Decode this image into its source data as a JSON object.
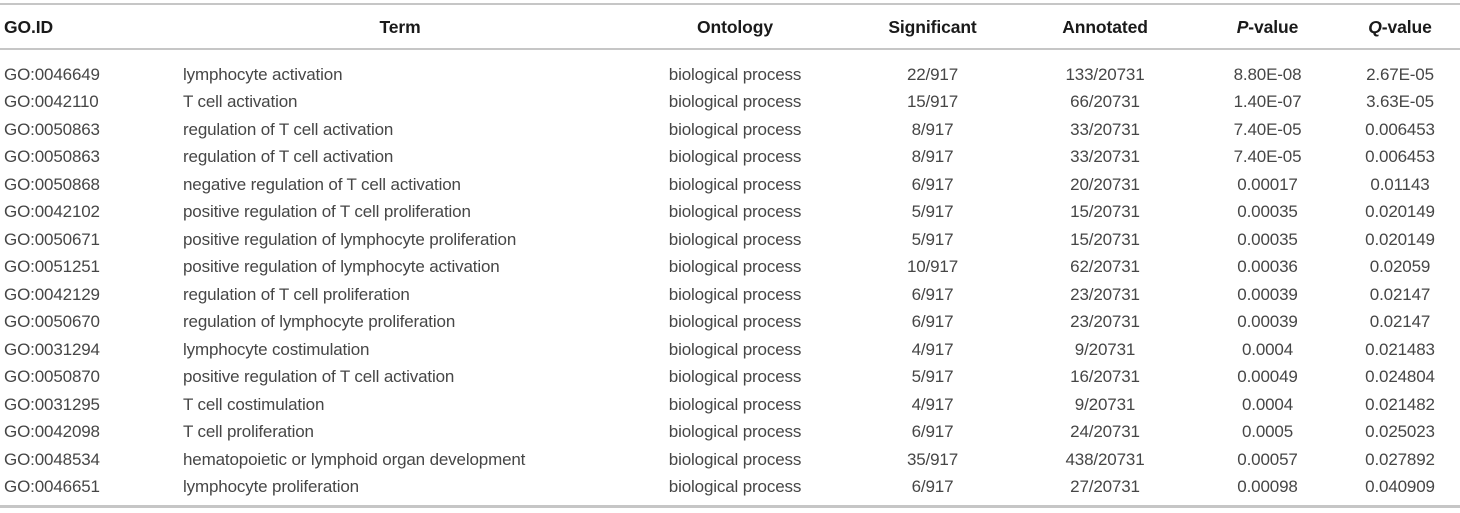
{
  "table": {
    "columns": [
      {
        "key": "go_id",
        "label": "GO.ID",
        "italic_first": false
      },
      {
        "key": "term",
        "label": "Term",
        "italic_first": false
      },
      {
        "key": "ontology",
        "label": "Ontology",
        "italic_first": false
      },
      {
        "key": "significant",
        "label": "Significant",
        "italic_first": false
      },
      {
        "key": "annotated",
        "label": "Annotated",
        "italic_first": false
      },
      {
        "key": "p_value",
        "label": "P-value",
        "italic_first": true
      },
      {
        "key": "q_value",
        "label": "Q-value",
        "italic_first": true
      }
    ],
    "rows": [
      {
        "go_id": "GO:0046649",
        "term": "lymphocyte activation",
        "ontology": "biological process",
        "significant": "22/917",
        "annotated": "133/20731",
        "p_value": "8.80E-08",
        "q_value": "2.67E-05"
      },
      {
        "go_id": "GO:0042110",
        "term": "T cell activation",
        "ontology": "biological process",
        "significant": "15/917",
        "annotated": "66/20731",
        "p_value": "1.40E-07",
        "q_value": "3.63E-05"
      },
      {
        "go_id": "GO:0050863",
        "term": "regulation of T cell activation",
        "ontology": "biological process",
        "significant": "8/917",
        "annotated": "33/20731",
        "p_value": "7.40E-05",
        "q_value": "0.006453"
      },
      {
        "go_id": "GO:0050863",
        "term": "regulation of T cell activation",
        "ontology": "biological process",
        "significant": "8/917",
        "annotated": "33/20731",
        "p_value": "7.40E-05",
        "q_value": "0.006453"
      },
      {
        "go_id": "GO:0050868",
        "term": "negative regulation of T cell activation",
        "ontology": "biological process",
        "significant": "6/917",
        "annotated": "20/20731",
        "p_value": "0.00017",
        "q_value": "0.01143"
      },
      {
        "go_id": "GO:0042102",
        "term": "positive regulation of T cell proliferation",
        "ontology": "biological process",
        "significant": "5/917",
        "annotated": "15/20731",
        "p_value": "0.00035",
        "q_value": "0.020149"
      },
      {
        "go_id": "GO:0050671",
        "term": "positive regulation of lymphocyte proliferation",
        "ontology": "biological process",
        "significant": "5/917",
        "annotated": "15/20731",
        "p_value": "0.00035",
        "q_value": "0.020149"
      },
      {
        "go_id": "GO:0051251",
        "term": "positive regulation of lymphocyte activation",
        "ontology": "biological process",
        "significant": "10/917",
        "annotated": "62/20731",
        "p_value": "0.00036",
        "q_value": "0.02059"
      },
      {
        "go_id": "GO:0042129",
        "term": "regulation of T cell proliferation",
        "ontology": "biological process",
        "significant": "6/917",
        "annotated": "23/20731",
        "p_value": "0.00039",
        "q_value": "0.02147"
      },
      {
        "go_id": "GO:0050670",
        "term": "regulation of lymphocyte proliferation",
        "ontology": "biological process",
        "significant": "6/917",
        "annotated": "23/20731",
        "p_value": "0.00039",
        "q_value": "0.02147"
      },
      {
        "go_id": "GO:0031294",
        "term": "lymphocyte costimulation",
        "ontology": "biological process",
        "significant": "4/917",
        "annotated": "9/20731",
        "p_value": "0.0004",
        "q_value": "0.021483"
      },
      {
        "go_id": "GO:0050870",
        "term": "positive regulation of T cell activation",
        "ontology": "biological process",
        "significant": "5/917",
        "annotated": "16/20731",
        "p_value": "0.00049",
        "q_value": "0.024804"
      },
      {
        "go_id": "GO:0031295",
        "term": "T cell costimulation",
        "ontology": "biological process",
        "significant": "4/917",
        "annotated": "9/20731",
        "p_value": "0.0004",
        "q_value": "0.021482"
      },
      {
        "go_id": "GO:0042098",
        "term": "T cell proliferation",
        "ontology": "biological process",
        "significant": "6/917",
        "annotated": "24/20731",
        "p_value": "0.0005",
        "q_value": "0.025023"
      },
      {
        "go_id": "GO:0048534",
        "term": "hematopoietic or lymphoid organ development",
        "ontology": "biological process",
        "significant": "35/917",
        "annotated": "438/20731",
        "p_value": "0.00057",
        "q_value": "0.027892"
      },
      {
        "go_id": "GO:0046651",
        "term": "lymphocyte proliferation",
        "ontology": "biological process",
        "significant": "6/917",
        "annotated": "27/20731",
        "p_value": "0.00098",
        "q_value": "0.040909"
      }
    ]
  },
  "colors": {
    "header_text": "#1a1a1a",
    "body_text": "#464646",
    "rule": "#c6c6c6",
    "background": "#ffffff"
  }
}
